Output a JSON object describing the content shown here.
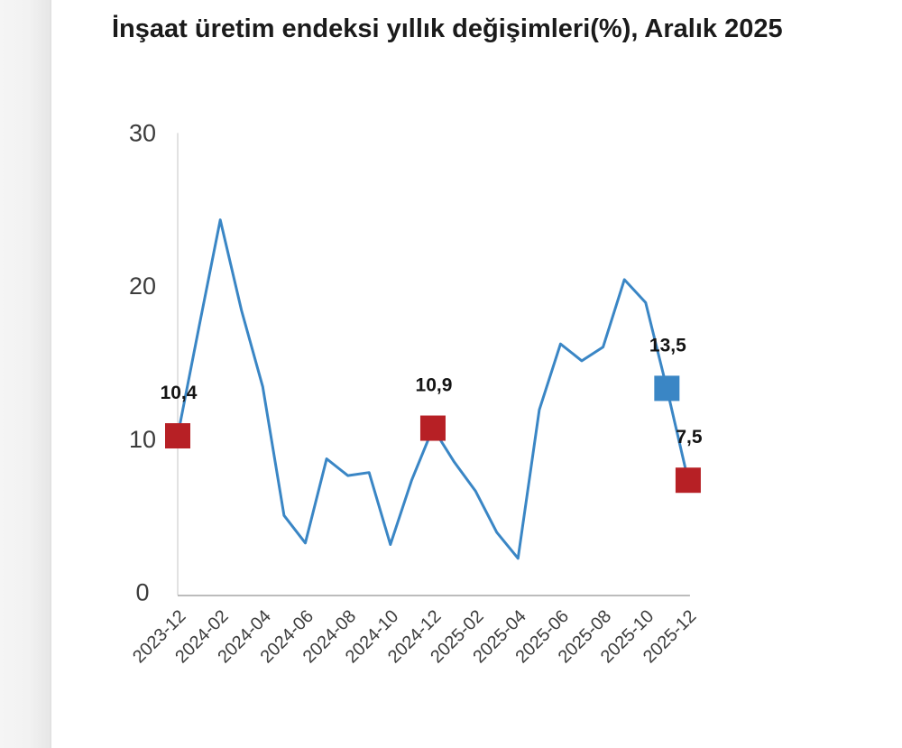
{
  "title": "İnşaat üretim endeksi yıllık değişimleri(%), Aralık 2025",
  "colors": {
    "line": "#3a86c5",
    "marker_red": "#b72025",
    "marker_blue": "#3a86c5",
    "axis_x": "#a6a6a6",
    "axis_y": "#d9d9d9",
    "tick_text": "#3c3c3c",
    "label_text": "#141414",
    "background": "#ffffff",
    "page_edge": "#f2f2f2"
  },
  "chart_data": {
    "type": "line",
    "title": "İnşaat üretim endeksi yıllık değişimleri(%), Aralık 2025",
    "x": [
      "2023-12",
      "2024-01",
      "2024-02",
      "2024-03",
      "2024-04",
      "2024-05",
      "2024-06",
      "2024-07",
      "2024-08",
      "2024-09",
      "2024-10",
      "2024-11",
      "2024-12",
      "2025-01",
      "2025-02",
      "2025-03",
      "2025-04",
      "2025-05",
      "2025-06",
      "2025-07",
      "2025-08",
      "2025-09",
      "2025-10",
      "2025-11",
      "2025-12"
    ],
    "values": [
      10.4,
      17.5,
      24.5,
      18.6,
      13.6,
      5.2,
      3.4,
      8.9,
      7.8,
      8.0,
      3.3,
      7.5,
      10.9,
      8.7,
      6.8,
      4.1,
      2.4,
      12.1,
      16.4,
      15.3,
      16.2,
      20.6,
      19.1,
      13.5,
      7.5
    ],
    "x_tick_labels": [
      "2023-12",
      "2024-02",
      "2024-04",
      "2024-06",
      "2024-08",
      "2024-10",
      "2024-12",
      "2025-02",
      "2025-04",
      "2025-06",
      "2025-08",
      "2025-10",
      "2025-12"
    ],
    "x_tick_every": 2,
    "y_ticks": [
      0,
      10,
      20,
      30
    ],
    "ylim": [
      0,
      30
    ],
    "grid": false,
    "legend": "none",
    "decimal_separator": ",",
    "marked_points": [
      {
        "x": "2023-12",
        "value": 10.4,
        "label": "10,4",
        "color_key": "marker_red"
      },
      {
        "x": "2024-12",
        "value": 10.9,
        "label": "10,9",
        "color_key": "marker_red"
      },
      {
        "x": "2025-11",
        "value": 13.5,
        "label": "13,5",
        "color_key": "marker_blue"
      },
      {
        "x": "2025-12",
        "value": 7.5,
        "label": "7,5",
        "color_key": "marker_red"
      }
    ]
  }
}
